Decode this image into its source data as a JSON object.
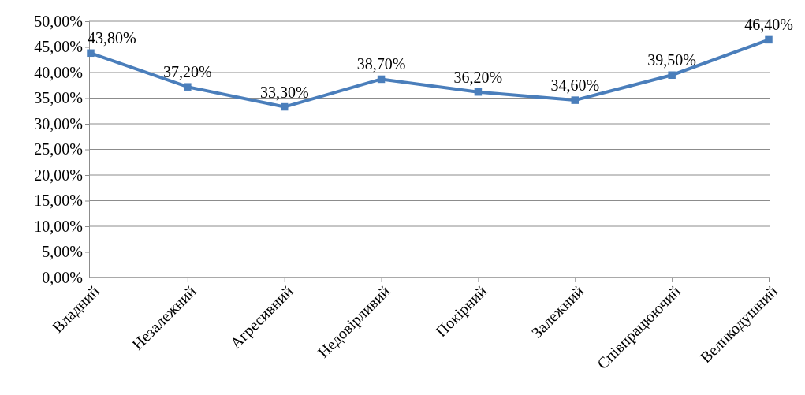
{
  "chart_data": {
    "type": "line",
    "categories": [
      "Владний",
      "Незалежний",
      "Агресивний",
      "Недовірливий",
      "Покірний",
      "Залежний",
      "Співпрацюючий",
      "Великодушний"
    ],
    "series": [
      {
        "color": "#4a7ebb",
        "values": [
          43.8,
          37.2,
          33.3,
          38.7,
          36.2,
          34.6,
          39.5,
          46.4
        ],
        "value_labels": [
          "43,80%",
          "37,20%",
          "33,30%",
          "38,70%",
          "36,20%",
          "34,60%",
          "39,50%",
          "46,40%"
        ]
      }
    ],
    "ylim": [
      0,
      50
    ],
    "yticks": [
      {
        "value": 0,
        "label": "0,00%"
      },
      {
        "value": 5,
        "label": "5,00%"
      },
      {
        "value": 10,
        "label": "10,00%"
      },
      {
        "value": 15,
        "label": "15,00%"
      },
      {
        "value": 20,
        "label": "20,00%"
      },
      {
        "value": 25,
        "label": "25,00%"
      },
      {
        "value": 30,
        "label": "30,00%"
      },
      {
        "value": 35,
        "label": "35,00%"
      },
      {
        "value": 40,
        "label": "40,00%"
      },
      {
        "value": 45,
        "label": "45,00%"
      },
      {
        "value": 50,
        "label": "50,00%"
      }
    ],
    "grid": "y",
    "marker": "square",
    "line_style": "solid"
  }
}
